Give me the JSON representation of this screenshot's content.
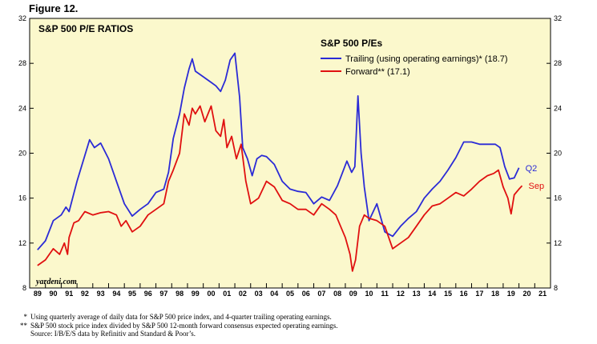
{
  "figure_label": "Figure 12.",
  "chart_data": {
    "type": "line",
    "title": "S&P 500 P/E RATIOS",
    "legend_title": "S&P 500 P/Es",
    "legend_placement": "top-right",
    "ylim": [
      8,
      32
    ],
    "y_ticks": [
      8,
      12,
      16,
      20,
      24,
      28,
      32
    ],
    "xlim": [
      1988.5,
      2021.5
    ],
    "x_tick_labels": [
      "89",
      "90",
      "91",
      "92",
      "93",
      "94",
      "95",
      "96",
      "97",
      "98",
      "99",
      "00",
      "01",
      "02",
      "03",
      "04",
      "05",
      "06",
      "07",
      "08",
      "09",
      "10",
      "11",
      "12",
      "13",
      "14",
      "15",
      "16",
      "17",
      "18",
      "19",
      "20",
      "21"
    ],
    "grid": false,
    "background_color": "#fbf8cc",
    "watermark": "yardeni.com",
    "series": [
      {
        "name": "Trailing (using operating earnings)* (18.7)",
        "color": "#2b2bd6",
        "end_label": "Q2",
        "x": [
          1989.0,
          1989.5,
          1990.0,
          1990.5,
          1990.8,
          1991.0,
          1991.5,
          1992.0,
          1992.3,
          1992.6,
          1993.0,
          1993.5,
          1994.0,
          1994.5,
          1995.0,
          1995.5,
          1996.0,
          1996.5,
          1997.0,
          1997.3,
          1997.6,
          1998.0,
          1998.3,
          1998.6,
          1998.8,
          1999.0,
          1999.5,
          2000.0,
          2000.3,
          2000.6,
          2000.9,
          2001.2,
          2001.5,
          2001.8,
          2002.0,
          2002.3,
          2002.6,
          2002.9,
          2003.2,
          2003.5,
          2004.0,
          2004.5,
          2005.0,
          2005.5,
          2006.0,
          2006.5,
          2007.0,
          2007.5,
          2008.0,
          2008.3,
          2008.6,
          2008.9,
          2009.1,
          2009.3,
          2009.5,
          2009.7,
          2010.0,
          2010.5,
          2011.0,
          2011.5,
          2012.0,
          2012.5,
          2013.0,
          2013.5,
          2014.0,
          2014.5,
          2015.0,
          2015.5,
          2016.0,
          2016.5,
          2017.0,
          2017.5,
          2018.0,
          2018.3,
          2018.6,
          2018.9,
          2019.2,
          2019.5
        ],
        "y": [
          11.4,
          12.2,
          14.0,
          14.5,
          15.2,
          14.8,
          17.5,
          19.8,
          21.2,
          20.5,
          20.9,
          19.5,
          17.5,
          15.5,
          14.4,
          15.0,
          15.5,
          16.5,
          16.8,
          18.3,
          21.3,
          23.5,
          25.8,
          27.5,
          28.4,
          27.3,
          26.8,
          26.3,
          26.0,
          25.5,
          26.5,
          28.3,
          28.9,
          25.0,
          20.5,
          19.5,
          18.0,
          19.5,
          19.8,
          19.7,
          19.0,
          17.5,
          16.8,
          16.6,
          16.5,
          15.5,
          16.1,
          15.8,
          17.1,
          18.2,
          19.3,
          18.3,
          18.8,
          25.1,
          20.0,
          17.0,
          14.0,
          15.5,
          13.0,
          12.6,
          13.5,
          14.2,
          14.8,
          16.0,
          16.8,
          17.5,
          18.5,
          19.6,
          21.0,
          21.0,
          20.8,
          20.8,
          20.8,
          20.5,
          18.8,
          17.7,
          17.8,
          18.7
        ]
      },
      {
        "name": "Forward** (17.1)",
        "color": "#e01010",
        "end_label": "Sep",
        "x": [
          1989.0,
          1989.5,
          1990.0,
          1990.4,
          1990.7,
          1990.9,
          1991.0,
          1991.3,
          1991.6,
          1992.0,
          1992.5,
          1993.0,
          1993.5,
          1994.0,
          1994.3,
          1994.6,
          1995.0,
          1995.5,
          1996.0,
          1996.5,
          1997.0,
          1997.3,
          1997.6,
          1998.0,
          1998.3,
          1998.6,
          1998.8,
          1999.0,
          1999.3,
          1999.6,
          2000.0,
          2000.3,
          2000.6,
          2000.8,
          2001.0,
          2001.3,
          2001.6,
          2001.9,
          2002.2,
          2002.5,
          2002.8,
          2003.0,
          2003.5,
          2004.0,
          2004.5,
          2005.0,
          2005.5,
          2006.0,
          2006.5,
          2007.0,
          2007.5,
          2007.9,
          2008.2,
          2008.5,
          2008.8,
          2008.95,
          2009.15,
          2009.4,
          2009.7,
          2010.0,
          2010.5,
          2011.0,
          2011.5,
          2012.0,
          2012.5,
          2013.0,
          2013.5,
          2014.0,
          2014.5,
          2015.0,
          2015.5,
          2016.0,
          2016.5,
          2017.0,
          2017.5,
          2017.9,
          2018.2,
          2018.5,
          2018.8,
          2019.0,
          2019.2,
          2019.5,
          2019.7
        ],
        "y": [
          10.0,
          10.5,
          11.5,
          11.0,
          12.0,
          11.0,
          12.5,
          13.8,
          14.0,
          14.8,
          14.5,
          14.7,
          14.8,
          14.5,
          13.5,
          14.0,
          13.0,
          13.5,
          14.5,
          15.0,
          15.5,
          17.5,
          18.5,
          20.0,
          23.5,
          22.5,
          24.0,
          23.5,
          24.2,
          22.8,
          24.2,
          22.0,
          21.5,
          23.0,
          20.5,
          21.5,
          19.5,
          20.8,
          17.5,
          15.5,
          15.8,
          16.0,
          17.5,
          17.0,
          15.8,
          15.5,
          15.0,
          15.0,
          14.5,
          15.5,
          15.0,
          14.5,
          13.5,
          12.5,
          11.0,
          9.5,
          10.5,
          13.5,
          14.5,
          14.2,
          14.0,
          13.5,
          11.5,
          12.0,
          12.5,
          13.5,
          14.5,
          15.3,
          15.5,
          16.0,
          16.5,
          16.2,
          16.8,
          17.5,
          18.0,
          18.2,
          18.5,
          17.0,
          16.0,
          14.6,
          16.3,
          16.8,
          17.1
        ]
      }
    ]
  },
  "footnotes": [
    {
      "mark": "*",
      "text": "Using quarterly average of daily data for S&P 500 price index, and 4-quarter trailing operating earnings."
    },
    {
      "mark": "**",
      "text": "S&P 500 stock price index divided by S&P 500 12-month forward consensus expected operating earnings."
    },
    {
      "mark": "",
      "text": "Source: I/B/E/S data by Refinitiv and Standard & Poor’s."
    }
  ]
}
